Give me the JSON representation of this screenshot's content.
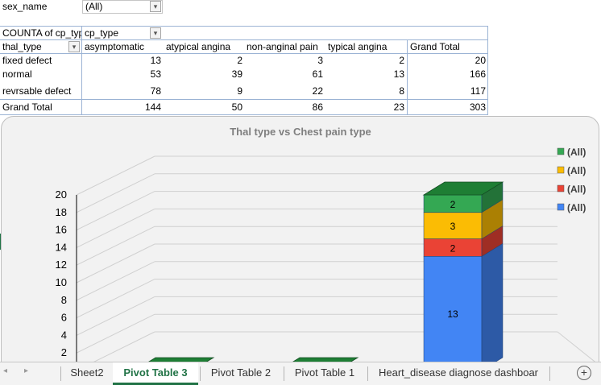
{
  "filter": {
    "field": "sex_name",
    "value": "(All)"
  },
  "pivot": {
    "values_label": "COUNTA of cp_type",
    "columns_label": "cp_type",
    "rows_label": "thal_type",
    "columns": [
      "asymptomatic",
      "atypical angina",
      "non-anginal pain",
      "typical angina",
      "Grand Total"
    ],
    "rows": [
      {
        "label": "fixed defect",
        "values": [
          "13",
          "2",
          "3",
          "2",
          "20"
        ]
      },
      {
        "label": "normal",
        "values": [
          "53",
          "39",
          "61",
          "13",
          "166"
        ]
      },
      {
        "label": "revrsable defect",
        "values": [
          "78",
          "9",
          "22",
          "8",
          "117"
        ]
      }
    ],
    "grand_total": {
      "label": "Grand Total",
      "values": [
        "144",
        "50",
        "86",
        "23",
        "303"
      ]
    }
  },
  "chart_data": {
    "type": "bar",
    "title": "Thal type vs Chest pain type",
    "ylim": [
      0,
      20
    ],
    "yticks": [
      0,
      2,
      4,
      6,
      8,
      10,
      12,
      14,
      16,
      18,
      20
    ],
    "categories": [
      "",
      "",
      ""
    ],
    "series": [
      {
        "name": "(All)",
        "values": [
          0,
          0,
          13
        ],
        "color": "#4285f4"
      },
      {
        "name": "(All)",
        "values": [
          0,
          0,
          2
        ],
        "color": "#ea4335"
      },
      {
        "name": "(All)",
        "values": [
          0,
          0,
          3
        ],
        "color": "#fbbc04"
      },
      {
        "name": "(All)",
        "values": [
          0,
          0,
          2
        ],
        "color": "#34a853"
      }
    ],
    "data_labels": [
      [
        "0",
        "0",
        "13"
      ],
      [
        "",
        "",
        "2"
      ],
      [
        "",
        "",
        "3"
      ],
      [
        "",
        "",
        "2"
      ]
    ],
    "legend": "right",
    "grid": true
  },
  "tabs": [
    {
      "label": "Sheet2",
      "active": false
    },
    {
      "label": "Pivot Table 3",
      "active": true
    },
    {
      "label": "Pivot Table 2",
      "active": false
    },
    {
      "label": "Pivot Table 1",
      "active": false
    },
    {
      "label": "Heart_disease diagnose dashboar",
      "active": false
    }
  ],
  "colors": {
    "accent": "#217346",
    "top_green": "#1e7e34"
  }
}
